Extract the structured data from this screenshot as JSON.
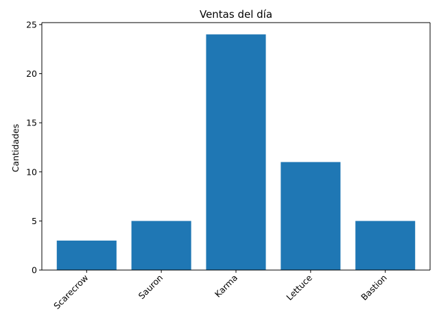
{
  "chart_data": {
    "type": "bar",
    "title": "Ventas del día",
    "xlabel": "",
    "ylabel": "Cantidades",
    "categories": [
      "Scarecrow",
      "Sauron",
      "Karma",
      "Lettuce",
      "Bastion"
    ],
    "values": [
      3,
      5,
      24,
      11,
      5
    ],
    "ylim": [
      0,
      25.2
    ],
    "yticks": [
      0,
      5,
      10,
      15,
      20,
      25
    ],
    "bar_color": "#1f77b4",
    "grid": false,
    "legend": "none"
  }
}
